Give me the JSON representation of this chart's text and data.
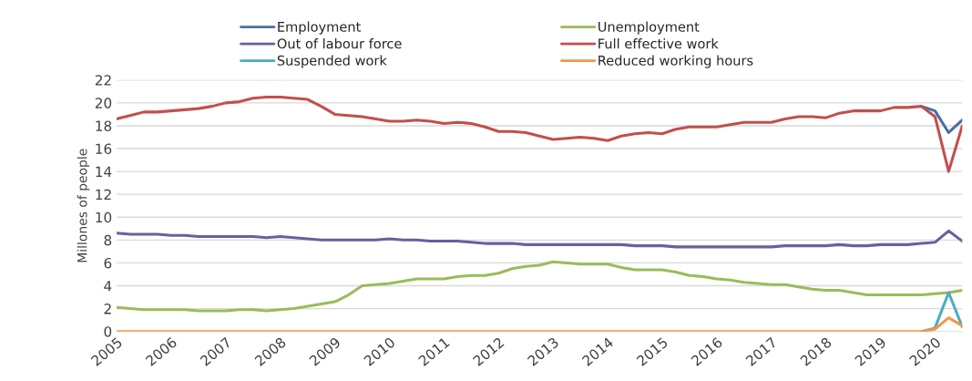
{
  "chart_data": {
    "type": "line",
    "ylabel": "Millones of people",
    "x": [
      2005.0,
      2005.25,
      2005.5,
      2005.75,
      2006.0,
      2006.25,
      2006.5,
      2006.75,
      2007.0,
      2007.25,
      2007.5,
      2007.75,
      2008.0,
      2008.25,
      2008.5,
      2008.75,
      2009.0,
      2009.25,
      2009.5,
      2009.75,
      2010.0,
      2010.25,
      2010.5,
      2010.75,
      2011.0,
      2011.25,
      2011.5,
      2011.75,
      2012.0,
      2012.25,
      2012.5,
      2012.75,
      2013.0,
      2013.25,
      2013.5,
      2013.75,
      2014.0,
      2014.25,
      2014.5,
      2014.75,
      2015.0,
      2015.25,
      2015.5,
      2015.75,
      2016.0,
      2016.25,
      2016.5,
      2016.75,
      2017.0,
      2017.25,
      2017.5,
      2017.75,
      2018.0,
      2018.25,
      2018.5,
      2018.75,
      2019.0,
      2019.25,
      2019.5,
      2019.75,
      2020.0,
      2020.25,
      2020.5
    ],
    "series": [
      {
        "name": "Employment",
        "color": "#4a6fa5",
        "values": [
          null,
          null,
          null,
          null,
          null,
          null,
          null,
          null,
          null,
          null,
          null,
          null,
          null,
          null,
          null,
          null,
          null,
          null,
          null,
          null,
          null,
          null,
          null,
          null,
          null,
          null,
          null,
          null,
          null,
          null,
          null,
          null,
          null,
          null,
          null,
          null,
          null,
          null,
          null,
          null,
          null,
          null,
          null,
          null,
          null,
          null,
          null,
          null,
          null,
          null,
          null,
          null,
          null,
          null,
          null,
          null,
          null,
          null,
          null,
          19.7,
          19.3,
          17.4,
          18.5
        ]
      },
      {
        "name": "Unemployment",
        "color": "#9bbb59",
        "values": [
          2.1,
          2.0,
          1.9,
          1.9,
          1.9,
          1.9,
          1.8,
          1.8,
          1.8,
          1.9,
          1.9,
          1.8,
          1.9,
          2.0,
          2.2,
          2.4,
          2.6,
          3.2,
          4.0,
          4.1,
          4.2,
          4.4,
          4.6,
          4.6,
          4.6,
          4.8,
          4.9,
          4.9,
          5.1,
          5.5,
          5.7,
          5.8,
          6.1,
          6.0,
          5.9,
          5.9,
          5.9,
          5.6,
          5.4,
          5.4,
          5.4,
          5.2,
          4.9,
          4.8,
          4.6,
          4.5,
          4.3,
          4.2,
          4.1,
          4.1,
          3.9,
          3.7,
          3.6,
          3.6,
          3.4,
          3.2,
          3.2,
          3.2,
          3.2,
          3.2,
          3.3,
          3.4,
          3.6
        ]
      },
      {
        "name": "Out of labour force",
        "color": "#6a5fa0",
        "values": [
          8.6,
          8.5,
          8.5,
          8.5,
          8.4,
          8.4,
          8.3,
          8.3,
          8.3,
          8.3,
          8.3,
          8.2,
          8.3,
          8.2,
          8.1,
          8.0,
          8.0,
          8.0,
          8.0,
          8.0,
          8.1,
          8.0,
          8.0,
          7.9,
          7.9,
          7.9,
          7.8,
          7.7,
          7.7,
          7.7,
          7.6,
          7.6,
          7.6,
          7.6,
          7.6,
          7.6,
          7.6,
          7.6,
          7.5,
          7.5,
          7.5,
          7.4,
          7.4,
          7.4,
          7.4,
          7.4,
          7.4,
          7.4,
          7.4,
          7.5,
          7.5,
          7.5,
          7.5,
          7.6,
          7.5,
          7.5,
          7.6,
          7.6,
          7.6,
          7.7,
          7.8,
          8.8,
          7.9
        ]
      },
      {
        "name": "Full effective work",
        "color": "#c0504d",
        "values": [
          18.6,
          18.9,
          19.2,
          19.2,
          19.3,
          19.4,
          19.5,
          19.7,
          20.0,
          20.1,
          20.4,
          20.5,
          20.5,
          20.4,
          20.3,
          19.7,
          19.0,
          18.9,
          18.8,
          18.6,
          18.4,
          18.4,
          18.5,
          18.4,
          18.2,
          18.3,
          18.2,
          17.9,
          17.5,
          17.5,
          17.4,
          17.1,
          16.8,
          16.9,
          17.0,
          16.9,
          16.7,
          17.1,
          17.3,
          17.4,
          17.3,
          17.7,
          17.9,
          17.9,
          17.9,
          18.1,
          18.3,
          18.3,
          18.3,
          18.6,
          18.8,
          18.8,
          18.7,
          19.1,
          19.3,
          19.3,
          19.3,
          19.6,
          19.6,
          19.7,
          18.8,
          14.0,
          18.0
        ]
      },
      {
        "name": "Suspended work",
        "color": "#4bacc6",
        "values": [
          null,
          null,
          null,
          null,
          null,
          null,
          null,
          null,
          null,
          null,
          null,
          null,
          null,
          null,
          null,
          null,
          null,
          null,
          null,
          null,
          null,
          null,
          null,
          null,
          null,
          null,
          null,
          null,
          null,
          null,
          null,
          null,
          null,
          null,
          null,
          null,
          null,
          null,
          null,
          null,
          null,
          null,
          null,
          null,
          null,
          null,
          null,
          null,
          null,
          null,
          null,
          null,
          null,
          null,
          null,
          null,
          null,
          null,
          null,
          0,
          0.3,
          3.4,
          0.4
        ]
      },
      {
        "name": "Reduced working hours",
        "color": "#f79646",
        "values": [
          0,
          0,
          0,
          0,
          0,
          0,
          0,
          0,
          0,
          0,
          0,
          0,
          0,
          0,
          0,
          0,
          0,
          0,
          0,
          0,
          0,
          0,
          0,
          0,
          0,
          0,
          0,
          0,
          0,
          0,
          0,
          0,
          0,
          0,
          0,
          0,
          0,
          0,
          0,
          0,
          0,
          0,
          0,
          0,
          0,
          0,
          0,
          0,
          0,
          0,
          0,
          0,
          0,
          0,
          0,
          0,
          0,
          0,
          0,
          0,
          0.2,
          1.2,
          0.5
        ]
      }
    ],
    "xlim": [
      2005,
      2020.5
    ],
    "xticks": [
      2005,
      2006,
      2007,
      2008,
      2009,
      2010,
      2011,
      2012,
      2013,
      2014,
      2015,
      2016,
      2017,
      2018,
      2019,
      2020
    ],
    "ylim": [
      0,
      22
    ],
    "yticks": [
      0,
      2,
      4,
      6,
      8,
      10,
      12,
      14,
      16,
      18,
      20,
      22
    ],
    "grid": "y",
    "legend": "top"
  }
}
